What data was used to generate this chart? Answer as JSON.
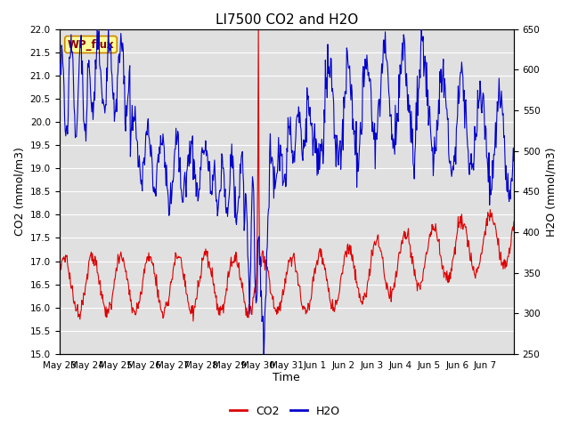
{
  "title": "LI7500 CO2 and H2O",
  "xlabel": "Time",
  "ylabel_left": "CO2 (mmol/m3)",
  "ylabel_right": "H2O (mmol/m3)",
  "co2_ylim": [
    15.0,
    22.0
  ],
  "h2o_ylim": [
    250,
    650
  ],
  "co2_color": "#dd0000",
  "h2o_color": "#0000cc",
  "background_color": "#e0e0e0",
  "annotation_text": "WP_flux",
  "annotation_bg": "#ffff99",
  "annotation_border": "#cc8800",
  "x_tick_labels": [
    "May 23",
    "May 24",
    "May 25",
    "May 26",
    "May 27",
    "May 28",
    "May 29",
    "May 30",
    "May 31",
    "Jun 1",
    "Jun 2",
    "Jun 3",
    "Jun 4",
    "Jun 5",
    "Jun 6",
    "Jun 7"
  ],
  "title_fontsize": 11,
  "axis_fontsize": 9,
  "tick_fontsize": 7.5,
  "legend_fontsize": 9,
  "co2_yticks": [
    15.0,
    15.5,
    16.0,
    16.5,
    17.0,
    17.5,
    18.0,
    18.5,
    19.0,
    19.5,
    20.0,
    20.5,
    21.0,
    21.5,
    22.0
  ],
  "h2o_yticks": [
    250,
    300,
    350,
    400,
    450,
    500,
    550,
    600,
    650
  ]
}
